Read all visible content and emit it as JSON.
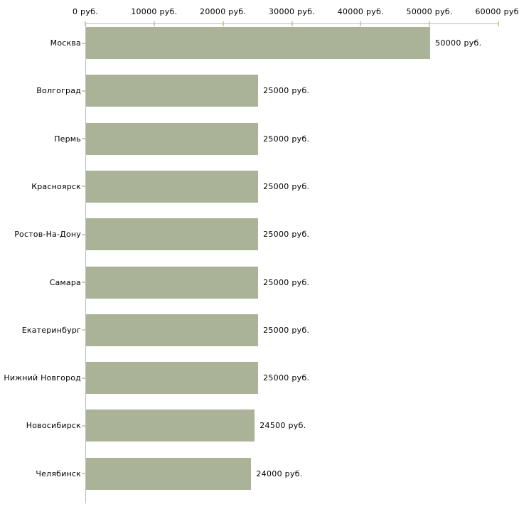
{
  "chart_data": {
    "type": "bar",
    "orientation": "horizontal",
    "title": "",
    "categories": [
      "Москва",
      "Волгоград",
      "Пермь",
      "Красноярск",
      "Ростов-На-Дону",
      "Самара",
      "Екатеринбург",
      "Нижний Новгород",
      "Новосибирск",
      "Челябинск"
    ],
    "values": [
      50000,
      25000,
      25000,
      25000,
      25000,
      25000,
      25000,
      25000,
      24500,
      24000
    ],
    "bar_labels": [
      "50000 руб.",
      "25000 руб.",
      "25000 руб.",
      "25000 руб.",
      "25000 руб.",
      "25000 руб.",
      "25000 руб.",
      "25000 руб.",
      "24500 руб.",
      "24000 руб."
    ],
    "x_ticks": [
      {
        "value": 0,
        "label": "0 руб."
      },
      {
        "value": 10000,
        "label": "10000 руб."
      },
      {
        "value": 20000,
        "label": "20000 руб."
      },
      {
        "value": 30000,
        "label": "30000 руб."
      },
      {
        "value": 40000,
        "label": "40000 руб."
      },
      {
        "value": 50000,
        "label": "50000 руб."
      },
      {
        "value": 60000,
        "label": "60000 руб."
      }
    ],
    "xlim": [
      0,
      60000
    ],
    "axis_position": "top",
    "legend": null,
    "grid": false,
    "colors": {
      "bar": "#aab297",
      "axis_line": "#bdbdbd",
      "tick_mark": "#cfcfa0",
      "text": "#000000",
      "background": "#ffffff"
    }
  }
}
